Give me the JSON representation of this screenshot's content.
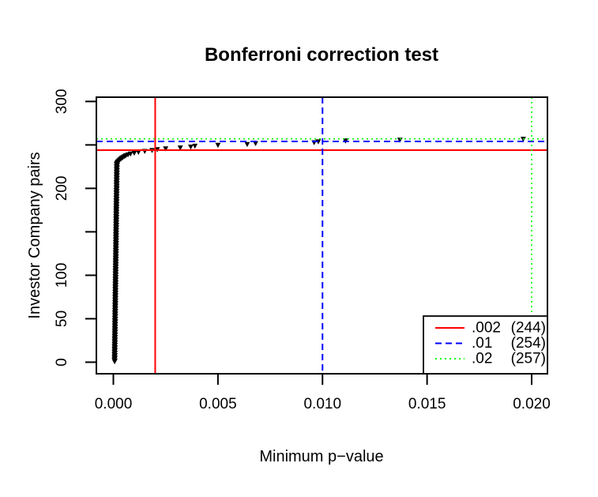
{
  "figure": {
    "background": "#FFFFFF",
    "plot_border_color": "#000000"
  },
  "chart_data": {
    "type": "scatter",
    "title": "Bonferroni correction test",
    "xlabel": "Minimum p−value",
    "ylabel": "Investor Company pairs",
    "grid": false,
    "marker": {
      "shape": "filled-triangle-down",
      "color": "#000000"
    },
    "xlim": [
      -0.0008,
      0.0208
    ],
    "ylim": [
      -14,
      305
    ],
    "x_axis": {
      "ticks": [
        0,
        0.005,
        0.01,
        0.015,
        0.02
      ],
      "tick_labels": [
        "0.000",
        "0.005",
        "0.010",
        "0.015",
        "0.020"
      ]
    },
    "y_axis": {
      "ticks": [
        0,
        50,
        100,
        150,
        200,
        250,
        300
      ],
      "tick_labels": [
        "0",
        "50",
        "100",
        "",
        "200",
        "",
        "300"
      ]
    },
    "legend": {
      "position": "bottom-right"
    },
    "thresholds": [
      {
        "p": 0.002,
        "pairs": 244,
        "legend_label": ".002",
        "legend_count": "(244)",
        "color": "#FF0000",
        "line_style": "solid"
      },
      {
        "p": 0.01,
        "pairs": 254,
        "legend_label": ".01",
        "legend_count": "(254)",
        "color": "#0000FF",
        "line_style": "dashed"
      },
      {
        "p": 0.02,
        "pairs": 257,
        "legend_label": ".02",
        "legend_count": "(257)",
        "color": "#00FF00",
        "line_style": "dotted"
      }
    ],
    "points": {
      "dense_column": {
        "ranks_from": 1,
        "ranks_to": 229,
        "x_from": 6e-05,
        "x_to": 0.00017,
        "x_jitter": 2e-05
      },
      "bend": [
        [
          0.00019,
          230
        ],
        [
          0.00022,
          231
        ],
        [
          0.00026,
          232
        ],
        [
          0.0003,
          233
        ],
        [
          0.00035,
          234
        ],
        [
          0.0004,
          235
        ],
        [
          0.00046,
          236
        ],
        [
          0.00053,
          237
        ],
        [
          0.0006,
          238
        ],
        [
          0.0007,
          239
        ],
        [
          0.00082,
          240
        ],
        [
          0.001,
          241
        ],
        [
          0.0012,
          242
        ],
        [
          0.0015,
          243
        ]
      ],
      "sparse": [
        [
          0.00185,
          244
        ],
        [
          0.0021,
          245
        ],
        [
          0.0025,
          246
        ],
        [
          0.0032,
          247
        ],
        [
          0.0037,
          248
        ],
        [
          0.0039,
          249
        ],
        [
          0.005,
          250
        ],
        [
          0.0064,
          251
        ],
        [
          0.0068,
          252
        ],
        [
          0.0096,
          253
        ],
        [
          0.0098,
          254
        ],
        [
          0.0111,
          255
        ],
        [
          0.0137,
          256
        ],
        [
          0.0196,
          257
        ]
      ]
    }
  }
}
